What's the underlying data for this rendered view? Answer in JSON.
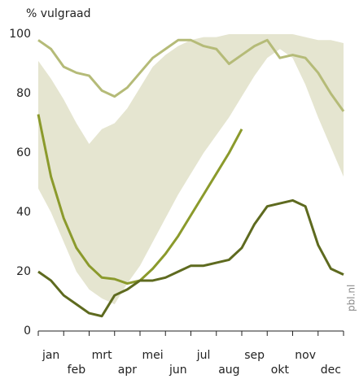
{
  "chart_data": {
    "type": "line",
    "title": "% vulgraad",
    "source": "pbl.nl",
    "categories": [
      "jan",
      "feb",
      "mrt",
      "apr",
      "mei",
      "jun",
      "jul",
      "aug",
      "sep",
      "okt",
      "nov",
      "dec"
    ],
    "x": [
      0,
      0.5,
      1,
      1.5,
      2,
      2.5,
      3,
      3.5,
      4,
      4.5,
      5,
      5.5,
      6,
      6.5,
      7,
      7.5,
      8,
      8.5,
      9,
      9.5,
      10,
      10.5,
      11,
      11.5,
      12
    ],
    "xlim": [
      0,
      12
    ],
    "ylim": [
      0,
      100
    ],
    "yticks": [
      0,
      20,
      40,
      60,
      80,
      100
    ],
    "band": {
      "color": "#e5e5d0",
      "upper": [
        91,
        85,
        78,
        70,
        63,
        68,
        70,
        75,
        82,
        89,
        93,
        96,
        98,
        99,
        99,
        100,
        100,
        100,
        100,
        100,
        100,
        99,
        98,
        98,
        97
      ],
      "lower": [
        48,
        40,
        30,
        20,
        14,
        11,
        9,
        16,
        22,
        30,
        38,
        46,
        53,
        60,
        66,
        72,
        79,
        86,
        92,
        95,
        92,
        83,
        72,
        62,
        52
      ]
    },
    "series": [
      {
        "color": "#b5bb78",
        "values": [
          98,
          95,
          89,
          87,
          86,
          81,
          79,
          82,
          87,
          92,
          95,
          98,
          98,
          96,
          95,
          90,
          93,
          96,
          98,
          92,
          93,
          92,
          87,
          80,
          74
        ]
      },
      {
        "color": "#8b9a2c",
        "values": [
          73,
          52,
          38,
          28,
          22,
          18,
          17.5,
          16,
          17,
          21,
          26,
          32,
          39,
          46,
          53,
          60,
          68,
          null,
          null,
          null,
          null,
          null,
          null,
          null,
          null
        ]
      },
      {
        "color": "#5e6a1f",
        "values": [
          20,
          17,
          12,
          9,
          6,
          5,
          12,
          14,
          17,
          17,
          18,
          20,
          22,
          22,
          23,
          24,
          28,
          36,
          42,
          43,
          44,
          42,
          29,
          21,
          19
        ]
      }
    ]
  }
}
